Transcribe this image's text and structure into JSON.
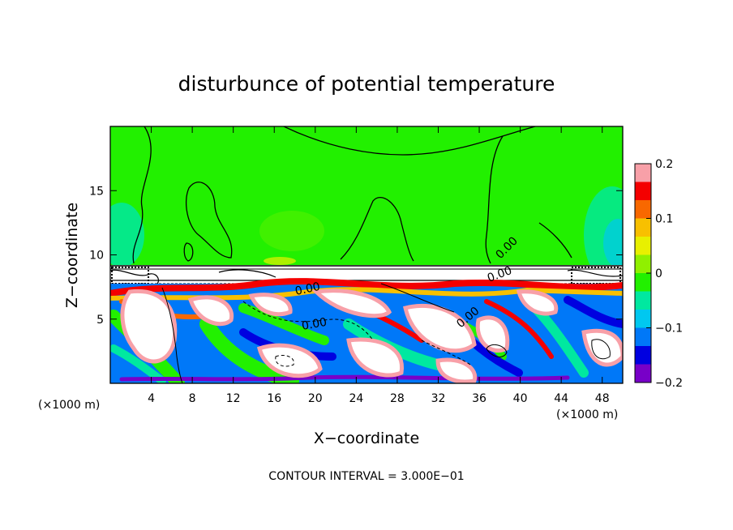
{
  "chart_data": {
    "type": "heatmap",
    "title": "disturbunce of potential temperature",
    "xlabel": "X−coordinate",
    "ylabel": "Z−coordinate",
    "x_unit_left": "(×1000 m)",
    "x_unit_right": "(×1000 m)",
    "xlim": [
      0,
      50
    ],
    "ylim": [
      0,
      20
    ],
    "x_ticks": [
      4,
      8,
      12,
      16,
      20,
      24,
      28,
      32,
      36,
      40,
      44,
      48
    ],
    "x_tick_labels": [
      "4",
      "8",
      "12",
      "16",
      "20",
      "24",
      "28",
      "32",
      "36",
      "40",
      "44",
      "48"
    ],
    "y_ticks": [
      5,
      10,
      15
    ],
    "y_tick_labels": [
      "5",
      "10",
      "15"
    ],
    "colorbar": {
      "min": -0.2,
      "max": 0.2,
      "ticks": [
        0.2,
        0.1,
        0,
        -0.1,
        -0.2
      ],
      "tick_labels": [
        "0.2",
        "0.1",
        "0",
        "−0.1",
        "−0.2"
      ],
      "colors": [
        "#f8a0a8",
        "#f40000",
        "#f86800",
        "#f8c000",
        "#e8f000",
        "#90f000",
        "#22f000",
        "#00e8a0",
        "#00c8f0",
        "#0078f8",
        "#0000e0",
        "#7800c8"
      ]
    },
    "contour_labels": [
      "0.00",
      "0.00",
      "0.00",
      "0.00",
      "0.00"
    ],
    "annotation": "CONTOUR INTERVAL = 3.000E−01",
    "colors": {
      "upper_field": "#22f000",
      "warm": "#f40000",
      "cool": "#0000e0",
      "saturated": "#ffffff"
    }
  }
}
